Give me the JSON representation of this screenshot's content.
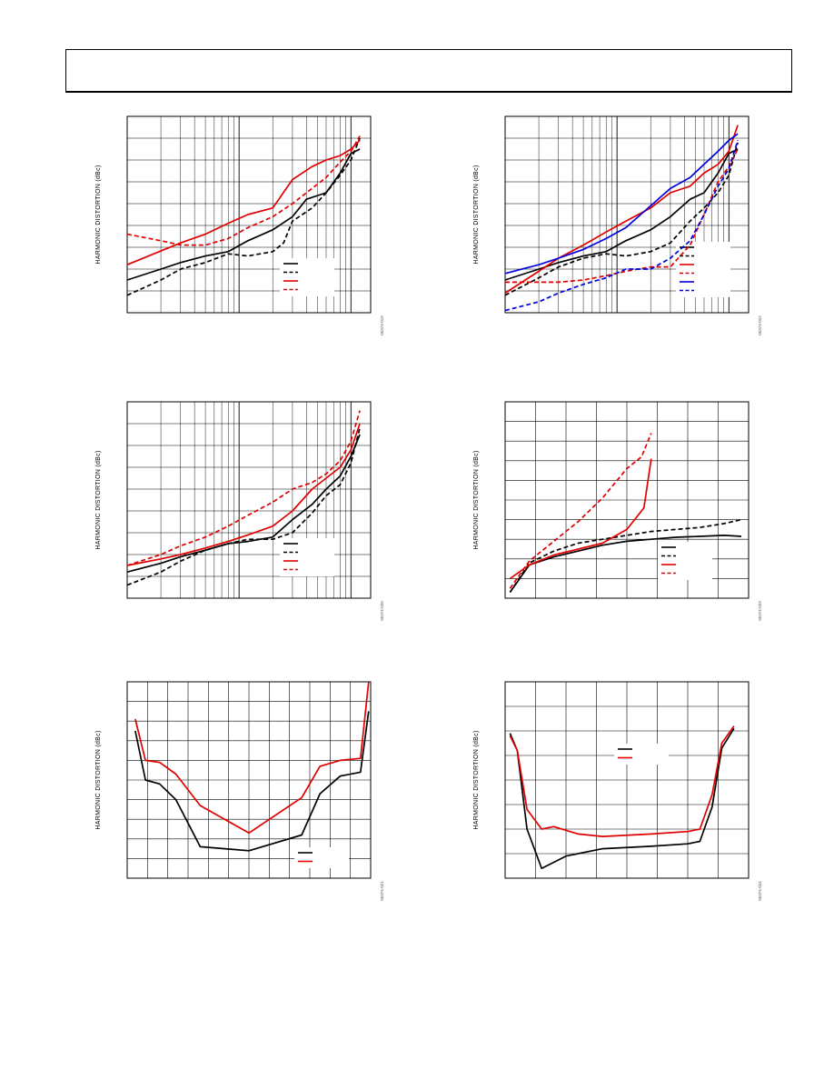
{
  "page": {
    "header_text": ""
  },
  "chart_data": [
    {
      "id": "c1",
      "type": "line",
      "xscale": "log",
      "grid": true,
      "legend": "bottom-right",
      "ylabel": "HARMONIC DISTORTION (dBc)",
      "fig_id": "05374-019",
      "xlim": [
        1,
        150
      ],
      "ylim": [
        0,
        9
      ],
      "series": [
        {
          "color": "#000000",
          "dash": false,
          "x": [
            1,
            2,
            3,
            5,
            8,
            12,
            20,
            30,
            40,
            60,
            80,
            100,
            120
          ],
          "y": [
            1.5,
            2.0,
            2.3,
            2.6,
            2.8,
            3.3,
            3.8,
            4.4,
            5.2,
            5.5,
            6.4,
            7.3,
            7.5
          ]
        },
        {
          "color": "#000000",
          "dash": true,
          "x": [
            1,
            2,
            3,
            5,
            8,
            12,
            20,
            25,
            30,
            45,
            60,
            80,
            100,
            120
          ],
          "y": [
            0.8,
            1.5,
            2.0,
            2.3,
            2.7,
            2.6,
            2.8,
            3.2,
            4.2,
            4.8,
            5.5,
            6.3,
            7.0,
            8.0
          ]
        },
        {
          "color": "#e00000",
          "dash": false,
          "x": [
            1,
            3,
            5,
            8,
            12,
            20,
            30,
            45,
            60,
            80,
            100,
            120
          ],
          "y": [
            2.2,
            3.2,
            3.6,
            4.1,
            4.5,
            4.8,
            6.1,
            6.7,
            7.0,
            7.2,
            7.5,
            7.9
          ]
        },
        {
          "color": "#e00000",
          "dash": true,
          "x": [
            1,
            2,
            3,
            5,
            8,
            12,
            20,
            30,
            45,
            60,
            80,
            100,
            120
          ],
          "y": [
            3.6,
            3.3,
            3.1,
            3.1,
            3.4,
            3.9,
            4.4,
            5.0,
            5.7,
            6.2,
            6.9,
            7.4,
            8.1
          ]
        }
      ]
    },
    {
      "id": "c2",
      "type": "line",
      "xscale": "log",
      "grid": true,
      "legend": "bottom-right",
      "ylabel": "HARMONIC DISTORTION (dBc)",
      "fig_id": "05374-022",
      "xlim": [
        1,
        150
      ],
      "ylim": [
        0,
        9
      ],
      "series": [
        {
          "color": "#000000",
          "dash": false,
          "x": [
            1,
            2,
            3,
            5,
            8,
            12,
            20,
            30,
            45,
            60,
            80,
            100,
            120
          ],
          "y": [
            1.5,
            2.0,
            2.3,
            2.6,
            2.8,
            3.3,
            3.8,
            4.4,
            5.2,
            5.5,
            6.4,
            7.3,
            7.5
          ]
        },
        {
          "color": "#000000",
          "dash": true,
          "x": [
            1,
            2,
            3,
            5,
            8,
            12,
            20,
            30,
            45,
            60,
            80,
            100,
            120
          ],
          "y": [
            0.8,
            1.6,
            2.1,
            2.5,
            2.7,
            2.6,
            2.8,
            3.2,
            4.2,
            4.8,
            5.5,
            6.3,
            7.8
          ]
        },
        {
          "color": "#e00000",
          "dash": false,
          "x": [
            1,
            2,
            3,
            5,
            8,
            12,
            20,
            30,
            45,
            60,
            80,
            100,
            120
          ],
          "y": [
            0.9,
            1.9,
            2.5,
            3.1,
            3.7,
            4.2,
            4.8,
            5.5,
            5.8,
            6.4,
            6.8,
            7.4,
            8.6
          ]
        },
        {
          "color": "#e00000",
          "dash": true,
          "x": [
            1,
            2,
            3,
            5,
            8,
            12,
            20,
            30,
            45,
            60,
            80,
            100,
            120
          ],
          "y": [
            1.4,
            1.4,
            1.4,
            1.5,
            1.7,
            1.9,
            2.1,
            2.1,
            3.1,
            4.5,
            6.0,
            6.7,
            7.5
          ]
        },
        {
          "color": "#0000e0",
          "dash": false,
          "x": [
            1,
            2,
            3,
            5,
            8,
            12,
            20,
            30,
            45,
            60,
            80,
            100,
            120
          ],
          "y": [
            1.8,
            2.2,
            2.5,
            2.9,
            3.4,
            3.9,
            4.9,
            5.7,
            6.2,
            6.8,
            7.4,
            7.9,
            8.2
          ]
        },
        {
          "color": "#0000e0",
          "dash": true,
          "x": [
            1,
            2,
            3,
            5,
            8,
            12,
            20,
            30,
            45,
            60,
            80,
            100,
            120
          ],
          "y": [
            0.1,
            0.5,
            0.9,
            1.3,
            1.6,
            2.0,
            2.0,
            2.5,
            3.3,
            4.5,
            5.8,
            6.6,
            7.9
          ]
        }
      ]
    },
    {
      "id": "c3",
      "type": "line",
      "xscale": "log",
      "grid": true,
      "legend": "bottom-right",
      "ylabel": "HARMONIC DISTORTION (dBc)",
      "fig_id": "05374-020",
      "xlim": [
        1,
        150
      ],
      "ylim": [
        0,
        9
      ],
      "series": [
        {
          "color": "#000000",
          "dash": false,
          "x": [
            1,
            2,
            3,
            5,
            8,
            12,
            20,
            30,
            45,
            60,
            80,
            100,
            120
          ],
          "y": [
            1.2,
            1.6,
            1.9,
            2.2,
            2.5,
            2.6,
            2.8,
            3.6,
            4.3,
            5.0,
            5.6,
            6.5,
            7.5
          ]
        },
        {
          "color": "#000000",
          "dash": true,
          "x": [
            1,
            2,
            3,
            5,
            8,
            12,
            20,
            30,
            45,
            60,
            80,
            100,
            120
          ],
          "y": [
            0.6,
            1.2,
            1.7,
            2.2,
            2.5,
            2.7,
            2.7,
            3.0,
            3.9,
            4.7,
            5.2,
            6.2,
            7.8
          ]
        },
        {
          "color": "#e00000",
          "dash": false,
          "x": [
            1,
            2,
            3,
            5,
            8,
            12,
            20,
            30,
            45,
            60,
            80,
            100,
            120
          ],
          "y": [
            1.5,
            1.8,
            2.0,
            2.3,
            2.6,
            2.9,
            3.3,
            4.0,
            5.0,
            5.5,
            6.0,
            6.8,
            8.0
          ]
        },
        {
          "color": "#e00000",
          "dash": true,
          "x": [
            1,
            2,
            3,
            5,
            8,
            12,
            20,
            30,
            45,
            60,
            80,
            100,
            120
          ],
          "y": [
            1.5,
            2.0,
            2.4,
            2.8,
            3.3,
            3.8,
            4.4,
            5.0,
            5.3,
            5.7,
            6.3,
            7.2,
            8.6
          ]
        }
      ]
    },
    {
      "id": "c4",
      "type": "line",
      "xscale": "linear",
      "grid": true,
      "legend": "bottom-right",
      "ylabel": "HARMONIC DISTORTION (dBc)",
      "fig_id": "05374-023",
      "xlim": [
        0,
        10
      ],
      "ylim": [
        0,
        10
      ],
      "series": [
        {
          "color": "#000000",
          "dash": false,
          "x": [
            0.2,
            1.0,
            2.0,
            3.0,
            4.0,
            5.0,
            6.0,
            7.0,
            8.0,
            9.0,
            9.7
          ],
          "y": [
            0.3,
            1.7,
            2.1,
            2.4,
            2.7,
            2.9,
            3.0,
            3.1,
            3.15,
            3.2,
            3.15
          ]
        },
        {
          "color": "#000000",
          "dash": true,
          "x": [
            0.2,
            1.0,
            2.0,
            3.0,
            4.0,
            5.0,
            6.0,
            7.0,
            8.0,
            9.0,
            9.7
          ],
          "y": [
            0.3,
            1.8,
            2.4,
            2.8,
            3.0,
            3.2,
            3.4,
            3.5,
            3.6,
            3.8,
            4.0
          ]
        },
        {
          "color": "#e00000",
          "dash": false,
          "x": [
            0.2,
            1.0,
            2.0,
            3.0,
            4.0,
            5.0,
            5.7,
            6.0
          ],
          "y": [
            1.0,
            1.7,
            2.2,
            2.5,
            2.8,
            3.5,
            4.6,
            7.1
          ]
        },
        {
          "color": "#e00000",
          "dash": true,
          "x": [
            0.2,
            1.0,
            2.0,
            3.0,
            4.0,
            5.0,
            5.6,
            6.0
          ],
          "y": [
            0.5,
            1.9,
            2.9,
            3.9,
            5.1,
            6.6,
            7.2,
            8.4
          ]
        }
      ]
    },
    {
      "id": "c5",
      "type": "line",
      "xscale": "linear",
      "grid": true,
      "legend": "bottom-right",
      "ylabel": "HARMONIC DISTORTION (dBc)",
      "fig_id": "05374-021",
      "xlim": [
        0,
        12
      ],
      "ylim": [
        0,
        10
      ],
      "series": [
        {
          "color": "#000000",
          "dash": false,
          "x": [
            0.4,
            0.9,
            1.6,
            2.4,
            3.6,
            6.0,
            8.6,
            9.5,
            10.5,
            11.5,
            11.9
          ],
          "y": [
            7.5,
            5.0,
            4.8,
            4.0,
            1.6,
            1.4,
            2.2,
            4.3,
            5.2,
            5.4,
            8.5
          ]
        },
        {
          "color": "#e00000",
          "dash": false,
          "x": [
            0.4,
            0.9,
            1.6,
            2.4,
            3.6,
            6.0,
            8.6,
            9.5,
            10.5,
            11.5,
            11.9
          ],
          "y": [
            8.1,
            6.0,
            5.9,
            5.3,
            3.7,
            2.3,
            4.1,
            5.7,
            6.0,
            6.1,
            10.0
          ]
        }
      ]
    },
    {
      "id": "c6",
      "type": "line",
      "xscale": "linear",
      "grid": true,
      "legend": "top-right",
      "ylabel": "HARMONIC DISTORTION (dBc)",
      "fig_id": "05374-024",
      "xlim": [
        0,
        10
      ],
      "ylim": [
        0,
        8
      ],
      "series": [
        {
          "color": "#000000",
          "dash": false,
          "x": [
            0.2,
            0.5,
            0.9,
            1.5,
            2.5,
            4.0,
            6.0,
            7.5,
            8.0,
            8.5,
            8.9,
            9.4
          ],
          "y": [
            5.9,
            5.2,
            2.0,
            0.4,
            0.9,
            1.2,
            1.3,
            1.4,
            1.5,
            2.9,
            5.3,
            6.1
          ]
        },
        {
          "color": "#e00000",
          "dash": false,
          "x": [
            0.2,
            0.5,
            0.9,
            1.5,
            2.0,
            3.0,
            4.0,
            6.0,
            7.5,
            8.0,
            8.5,
            8.9,
            9.4
          ],
          "y": [
            5.8,
            5.2,
            2.8,
            2.0,
            2.1,
            1.8,
            1.7,
            1.8,
            1.9,
            2.0,
            3.4,
            5.5,
            6.2
          ]
        }
      ]
    }
  ]
}
